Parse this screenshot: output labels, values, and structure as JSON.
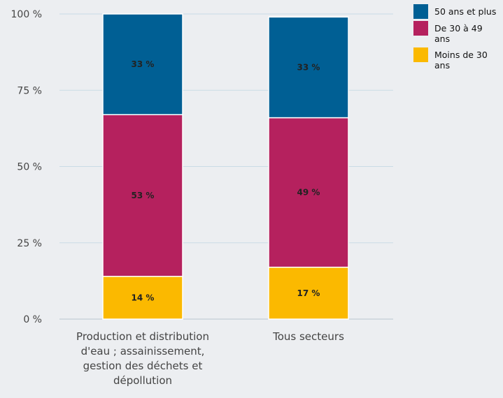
{
  "chart_data": {
    "type": "bar",
    "stacked": true,
    "categories": [
      [
        "Production et distribution",
        "d'eau ; assainissement,",
        "gestion des déchets et",
        "dépollution"
      ],
      [
        "Tous secteurs"
      ]
    ],
    "series": [
      {
        "name": "Moins de 30 ans",
        "legend_lines": [
          "Moins de 30",
          "ans"
        ],
        "color": "#fbb900",
        "values": [
          14,
          17
        ],
        "labels": [
          "14 %",
          "17 %"
        ]
      },
      {
        "name": "De 30 à 49 ans",
        "legend_lines": [
          "De 30 à 49",
          "ans"
        ],
        "color": "#b5215e",
        "values": [
          53,
          49
        ],
        "labels": [
          "53 %",
          "49 %"
        ]
      },
      {
        "name": "50 ans et plus",
        "legend_lines": [
          "50 ans et plus"
        ],
        "color": "#005f94",
        "values": [
          33,
          33
        ],
        "labels": [
          "33 %",
          "33 %"
        ]
      }
    ],
    "legend_order": [
      2,
      1,
      0
    ],
    "yticks": [
      "0 %",
      "25 %",
      "50 %",
      "75 %",
      "100 %"
    ],
    "ylim": [
      0,
      100
    ],
    "grid": true,
    "legend_position": "top-right"
  }
}
